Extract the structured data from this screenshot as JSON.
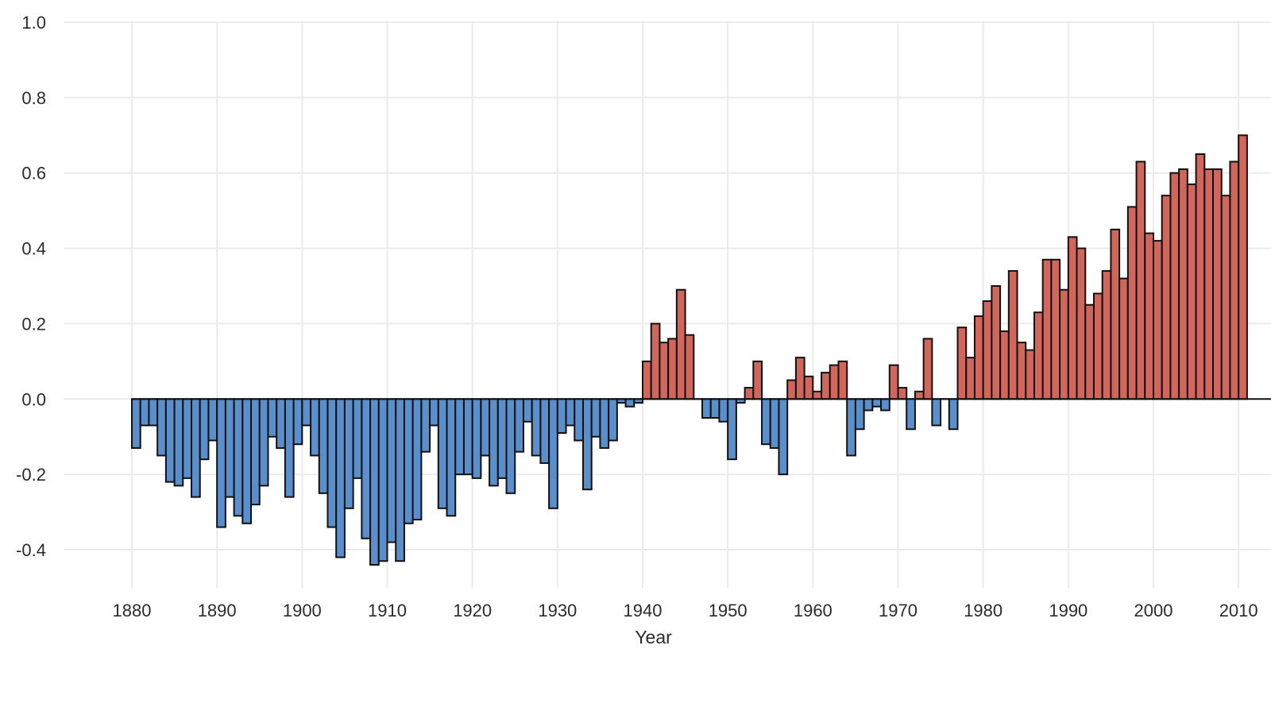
{
  "chart_data": {
    "type": "bar",
    "title": "",
    "xlabel": "Year",
    "ylabel": "",
    "grid": true,
    "legend": "none",
    "ylim": [
      -0.45,
      1.0
    ],
    "y_ticks": [
      -0.4,
      -0.2,
      0.0,
      0.2,
      0.4,
      0.6,
      0.8,
      1.0
    ],
    "y_tick_labels": [
      "-0.4",
      "-0.2",
      "0.0",
      "0.2",
      "0.4",
      "0.6",
      "0.8",
      "1.0"
    ],
    "x_ticks": [
      1880,
      1890,
      1900,
      1910,
      1920,
      1930,
      1940,
      1950,
      1960,
      1970,
      1980,
      1990,
      2000,
      2010
    ],
    "x_tick_labels": [
      "1880",
      "1890",
      "1900",
      "1910",
      "1920",
      "1930",
      "1940",
      "1950",
      "1960",
      "1970",
      "1980",
      "1990",
      "2000",
      "2010"
    ],
    "colors": {
      "positive": "#d1665c",
      "negative": "#5b8fcc",
      "outline": "#111111",
      "grid": "#ebebeb"
    },
    "x": [
      1880,
      1881,
      1882,
      1883,
      1884,
      1885,
      1886,
      1887,
      1888,
      1889,
      1890,
      1891,
      1892,
      1893,
      1894,
      1895,
      1896,
      1897,
      1898,
      1899,
      1900,
      1901,
      1902,
      1903,
      1904,
      1905,
      1906,
      1907,
      1908,
      1909,
      1910,
      1911,
      1912,
      1913,
      1914,
      1915,
      1916,
      1917,
      1918,
      1919,
      1920,
      1921,
      1922,
      1923,
      1924,
      1925,
      1926,
      1927,
      1928,
      1929,
      1930,
      1931,
      1932,
      1933,
      1934,
      1935,
      1936,
      1937,
      1938,
      1939,
      1940,
      1941,
      1942,
      1943,
      1944,
      1945,
      1946,
      1947,
      1948,
      1949,
      1950,
      1951,
      1952,
      1953,
      1954,
      1955,
      1956,
      1957,
      1958,
      1959,
      1960,
      1961,
      1962,
      1963,
      1964,
      1965,
      1966,
      1967,
      1968,
      1969,
      1970,
      1971,
      1972,
      1973,
      1974,
      1975,
      1976,
      1977,
      1978,
      1979,
      1980,
      1981,
      1982,
      1983,
      1984,
      1985,
      1986,
      1987,
      1988,
      1989,
      1990,
      1991,
      1992,
      1993,
      1994,
      1995,
      1996,
      1997,
      1998,
      1999,
      2000,
      2001,
      2002,
      2003,
      2004,
      2005,
      2006,
      2007,
      2008,
      2009,
      2010
    ],
    "values": [
      -0.13,
      -0.07,
      -0.07,
      -0.15,
      -0.22,
      -0.23,
      -0.21,
      -0.26,
      -0.16,
      -0.11,
      -0.34,
      -0.26,
      -0.31,
      -0.33,
      -0.28,
      -0.23,
      -0.1,
      -0.13,
      -0.26,
      -0.12,
      -0.07,
      -0.15,
      -0.25,
      -0.34,
      -0.42,
      -0.29,
      -0.21,
      -0.37,
      -0.44,
      -0.43,
      -0.38,
      -0.43,
      -0.33,
      -0.32,
      -0.14,
      -0.07,
      -0.29,
      -0.31,
      -0.2,
      -0.2,
      -0.21,
      -0.15,
      -0.23,
      -0.21,
      -0.25,
      -0.14,
      -0.06,
      -0.15,
      -0.17,
      -0.29,
      -0.09,
      -0.07,
      -0.11,
      -0.24,
      -0.1,
      -0.13,
      -0.11,
      -0.01,
      -0.02,
      -0.01,
      0.1,
      0.2,
      0.15,
      0.16,
      0.29,
      0.17,
      0.0,
      -0.05,
      -0.05,
      -0.06,
      -0.16,
      -0.01,
      0.03,
      0.1,
      -0.12,
      -0.13,
      -0.2,
      0.05,
      0.11,
      0.06,
      0.02,
      0.07,
      0.09,
      0.1,
      -0.15,
      -0.08,
      -0.03,
      -0.02,
      -0.03,
      0.09,
      0.03,
      -0.08,
      0.02,
      0.16,
      -0.07,
      0.0,
      -0.08,
      0.19,
      0.11,
      0.22,
      0.26,
      0.3,
      0.18,
      0.34,
      0.15,
      0.13,
      0.23,
      0.37,
      0.37,
      0.29,
      0.43,
      0.4,
      0.25,
      0.28,
      0.34,
      0.45,
      0.32,
      0.51,
      0.63,
      0.44,
      0.42,
      0.54,
      0.6,
      0.61,
      0.57,
      0.65,
      0.61,
      0.61,
      0.54,
      0.63,
      0.7
    ]
  }
}
